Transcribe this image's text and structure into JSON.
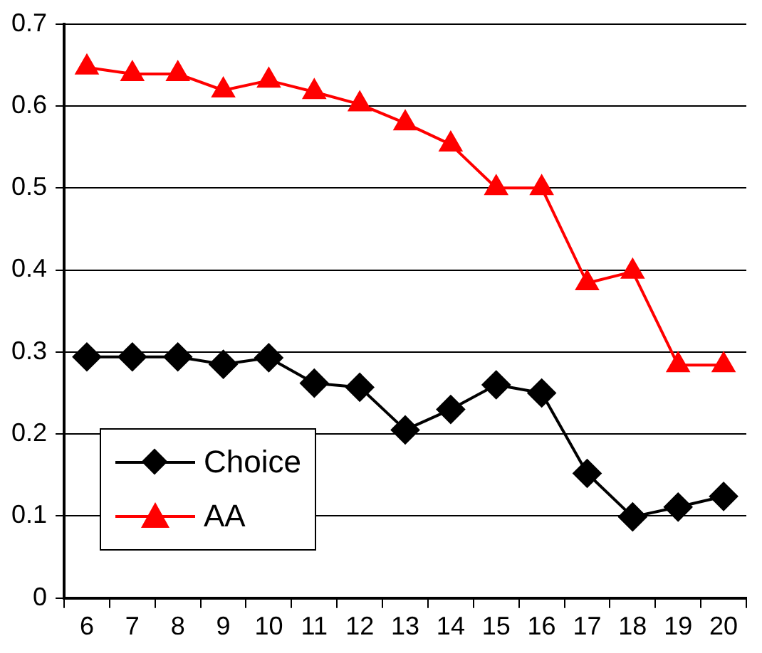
{
  "chart_data": {
    "type": "line",
    "categories": [
      "6",
      "7",
      "8",
      "9",
      "10",
      "11",
      "12",
      "13",
      "14",
      "15",
      "16",
      "17",
      "18",
      "19",
      "20"
    ],
    "series": [
      {
        "name": "Choice",
        "color": "#000000",
        "marker": "diamond",
        "values": [
          0.294,
          0.294,
          0.294,
          0.285,
          0.293,
          0.262,
          0.257,
          0.205,
          0.23,
          0.26,
          0.25,
          0.152,
          0.099,
          0.111,
          0.124
        ]
      },
      {
        "name": "AA",
        "color": "#ff0000",
        "marker": "triangle",
        "values": [
          0.647,
          0.639,
          0.639,
          0.619,
          0.631,
          0.617,
          0.602,
          0.579,
          0.553,
          0.5,
          0.5,
          0.384,
          0.398,
          0.284,
          0.284
        ]
      }
    ],
    "ylim": [
      0,
      0.7
    ],
    "yticks": [
      0,
      0.1,
      0.2,
      0.3,
      0.4,
      0.5,
      0.6,
      0.7
    ],
    "grid": "y",
    "legend": "bottom left"
  }
}
